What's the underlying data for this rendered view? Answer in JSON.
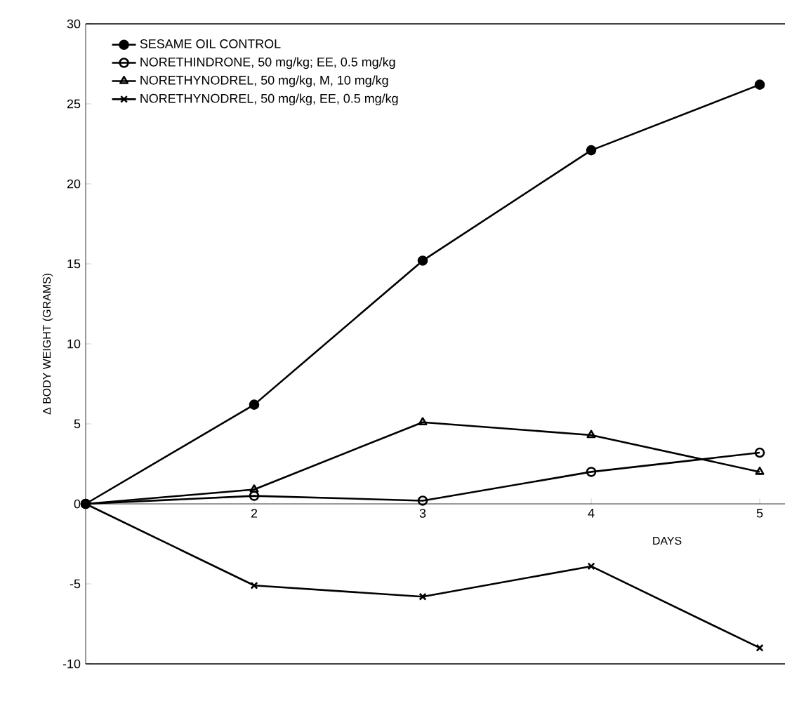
{
  "chart_data": {
    "type": "line",
    "xlabel": "DAYS",
    "ylabel": "Δ BODY WEIGHT (GRAMS)",
    "x": [
      1,
      2,
      3,
      4,
      5
    ],
    "xlim": [
      1,
      5.15
    ],
    "xticks": [
      2,
      3,
      4,
      5
    ],
    "ylim": [
      -10,
      30
    ],
    "yticks": [
      -10,
      -5,
      0,
      5,
      10,
      15,
      20,
      25,
      30
    ],
    "grid": false,
    "legend": "top left",
    "series": [
      {
        "name": "SESAME OIL CONTROL",
        "color": "#000000",
        "marker": "filled circle",
        "values": [
          0,
          6.2,
          15.2,
          22.1,
          26.2
        ]
      },
      {
        "name": "NORETHINDRONE,  50 mg/kg; EE, 0.5 mg/kg",
        "color": "#000000",
        "marker": "circle",
        "values": [
          0,
          0.5,
          0.2,
          2.0,
          3.2
        ]
      },
      {
        "name": "NORETHYNODREL, 50 mg/kg, M, 10 mg/kg",
        "color": "#000000",
        "marker": "triangle",
        "values": [
          0,
          0.9,
          5.1,
          4.3,
          2.0
        ]
      },
      {
        "name": "NORETHYNODREL, 50 mg/kg, EE, 0.5 mg/kg",
        "color": "#000000",
        "marker": "cross",
        "values": [
          0,
          -5.1,
          -5.8,
          -3.9,
          -9.0
        ]
      }
    ]
  }
}
